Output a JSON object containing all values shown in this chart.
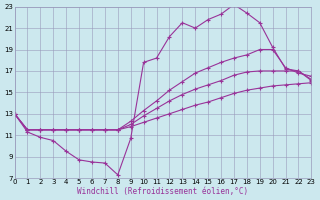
{
  "xlabel": "Windchill (Refroidissement éolien,°C)",
  "xlim": [
    0,
    23
  ],
  "ylim": [
    7,
    23
  ],
  "yticks": [
    7,
    9,
    11,
    13,
    15,
    17,
    19,
    21,
    23
  ],
  "xticks": [
    0,
    1,
    2,
    3,
    4,
    5,
    6,
    7,
    8,
    9,
    10,
    11,
    12,
    13,
    14,
    15,
    16,
    17,
    18,
    19,
    20,
    21,
    22,
    23
  ],
  "background_color": "#cce8ee",
  "grid_color": "#9999bb",
  "line_color": "#993399",
  "lines": [
    {
      "x": [
        0,
        1,
        2,
        3,
        4,
        5,
        6,
        7,
        8,
        9,
        10,
        11,
        12,
        13,
        14,
        15,
        16,
        17,
        18,
        19,
        20,
        21,
        22,
        23
      ],
      "y": [
        13,
        11.3,
        10.8,
        10.5,
        9.5,
        8.7,
        8.5,
        8.4,
        7.3,
        10.7,
        17.8,
        18.2,
        20.2,
        21.5,
        21.0,
        21.8,
        22.3,
        23.2,
        22.4,
        21.5,
        19.2,
        17.2,
        17.0,
        16.2
      ]
    },
    {
      "x": [
        0,
        1,
        2,
        3,
        4,
        5,
        6,
        7,
        8,
        9,
        10,
        11,
        12,
        13,
        14,
        15,
        16,
        17,
        18,
        19,
        20,
        21,
        22,
        23
      ],
      "y": [
        13,
        11.5,
        11.5,
        11.5,
        11.5,
        11.5,
        11.5,
        11.5,
        11.5,
        12.3,
        13.3,
        14.2,
        15.2,
        16.0,
        16.8,
        17.3,
        17.8,
        18.2,
        18.5,
        19.0,
        19.0,
        17.3,
        16.8,
        16.5
      ]
    },
    {
      "x": [
        0,
        1,
        2,
        3,
        4,
        5,
        6,
        7,
        8,
        9,
        10,
        11,
        12,
        13,
        14,
        15,
        16,
        17,
        18,
        19,
        20,
        21,
        22,
        23
      ],
      "y": [
        13,
        11.5,
        11.5,
        11.5,
        11.5,
        11.5,
        11.5,
        11.5,
        11.5,
        12.0,
        12.8,
        13.5,
        14.2,
        14.8,
        15.3,
        15.7,
        16.1,
        16.6,
        16.9,
        17.0,
        17.0,
        17.0,
        17.0,
        16.1
      ]
    },
    {
      "x": [
        0,
        1,
        2,
        3,
        4,
        5,
        6,
        7,
        8,
        9,
        10,
        11,
        12,
        13,
        14,
        15,
        16,
        17,
        18,
        19,
        20,
        21,
        22,
        23
      ],
      "y": [
        13,
        11.5,
        11.5,
        11.5,
        11.5,
        11.5,
        11.5,
        11.5,
        11.5,
        11.8,
        12.2,
        12.6,
        13.0,
        13.4,
        13.8,
        14.1,
        14.5,
        14.9,
        15.2,
        15.4,
        15.6,
        15.7,
        15.8,
        15.9
      ]
    }
  ]
}
